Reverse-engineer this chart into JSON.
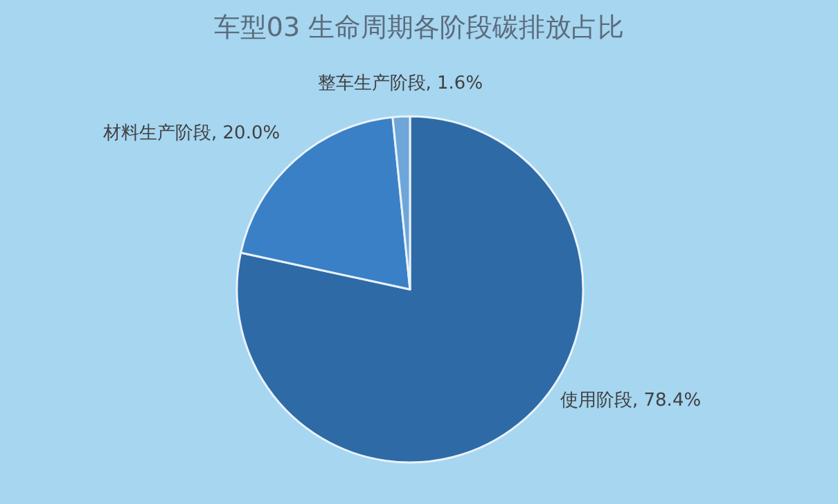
{
  "chart_data": {
    "type": "pie",
    "title": "车型03 生命周期各阶段碳排放占比",
    "categories": [
      "使用阶段",
      "材料生产阶段",
      "整车生产阶段"
    ],
    "values": [
      78.4,
      20.0,
      1.6
    ],
    "value_labels": [
      "78.4%",
      "20.0%",
      "1.6%"
    ],
    "colors": [
      "#2e6aa6",
      "#3a80c6",
      "#6ea6da"
    ],
    "legend": false
  }
}
